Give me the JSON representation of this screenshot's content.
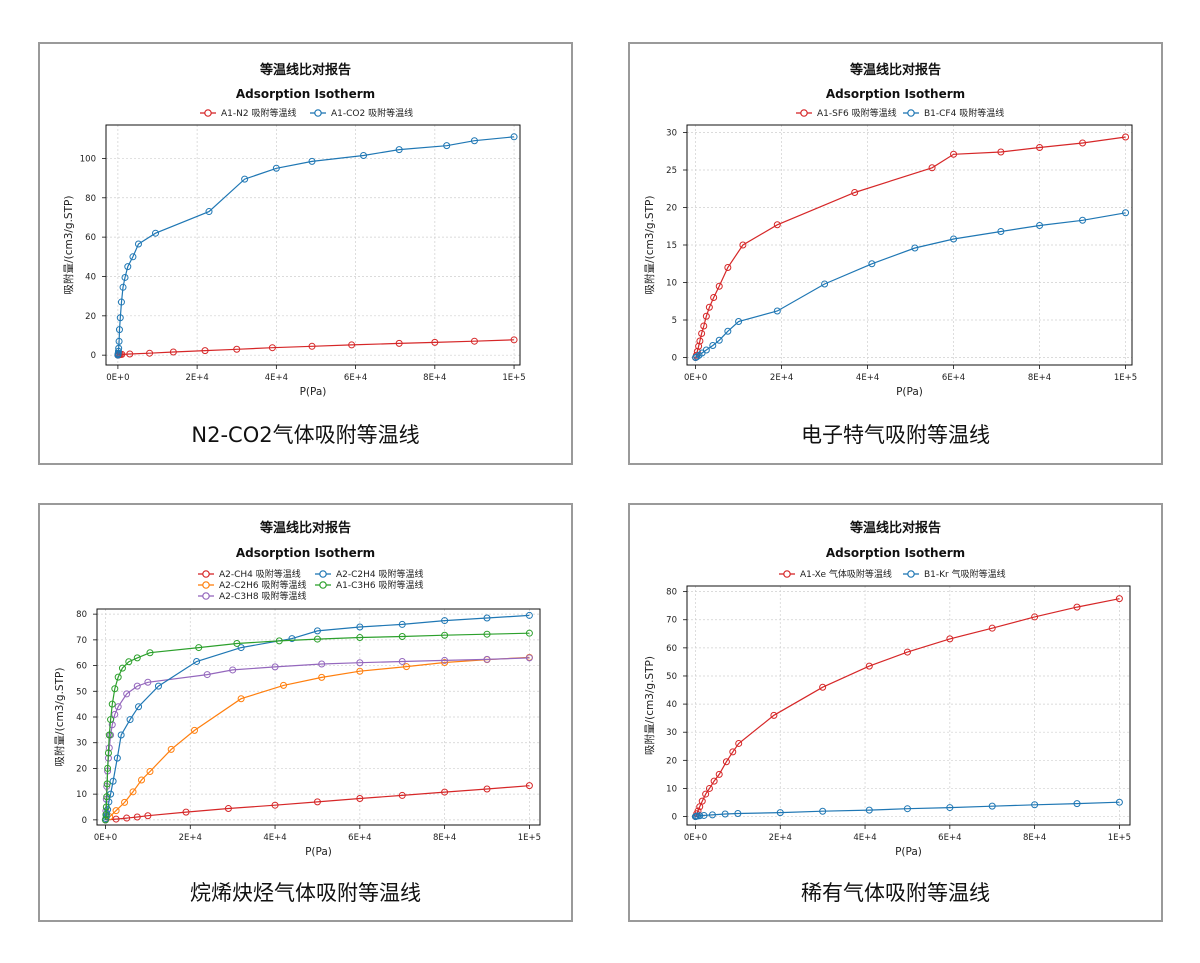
{
  "chart_data": [
    {
      "type": "line",
      "title": "等温线比对报告",
      "subtitle": "Adsorption Isotherm",
      "caption": "N2-CO2气体吸附等温线",
      "xlabel": "P(Pa)",
      "ylabel": "吸附量/(cm3/g.STP)",
      "xlim": [
        -3000,
        101500
      ],
      "ylim": [
        -5,
        117
      ],
      "xticks": [
        0,
        20000,
        40000,
        60000,
        80000,
        100000
      ],
      "xtick_labels": [
        "0E+0",
        "2E+4",
        "4E+4",
        "6E+4",
        "8E+4",
        "1E+5"
      ],
      "yticks": [
        0,
        20,
        40,
        60,
        80,
        100
      ],
      "ytick_labels": [
        "0",
        "20",
        "40",
        "60",
        "80",
        "100"
      ],
      "legend_layout": "row",
      "series": [
        {
          "name": "A1-N2 吸附等温线",
          "color": "#d62728",
          "x": [
            0,
            100,
            300,
            600,
            1000,
            3000,
            8000,
            14000,
            22000,
            30000,
            39000,
            49000,
            59000,
            71000,
            80000,
            90000,
            100000
          ],
          "y": [
            0,
            0.1,
            0.2,
            0.3,
            0.4,
            0.6,
            1.0,
            1.6,
            2.3,
            3.0,
            3.8,
            4.5,
            5.2,
            6.0,
            6.5,
            7.1,
            7.8
          ]
        },
        {
          "name": "A1-CO2 吸附等温线",
          "color": "#1f77b4",
          "x": [
            0,
            50,
            100,
            150,
            200,
            300,
            400,
            600,
            900,
            1300,
            1800,
            2500,
            3800,
            5200,
            9500,
            23000,
            32000,
            40000,
            49000,
            62000,
            71000,
            83000,
            90000,
            100000
          ],
          "y": [
            0,
            0.5,
            1.0,
            2.0,
            3.5,
            7,
            13,
            19,
            27,
            34.5,
            39.5,
            45,
            50,
            56.5,
            62,
            73,
            89.5,
            95,
            98.5,
            101.5,
            104.5,
            106.5,
            109,
            111
          ]
        }
      ]
    },
    {
      "type": "line",
      "title": "等温线比对报告",
      "subtitle": "Adsorption Isotherm",
      "caption": "电子特气吸附等温线",
      "xlabel": "P(Pa)",
      "ylabel": "吸附量/(cm3/g.STP)",
      "xlim": [
        -2000,
        101500
      ],
      "ylim": [
        -1,
        31
      ],
      "xticks": [
        0,
        20000,
        40000,
        60000,
        80000,
        100000
      ],
      "xtick_labels": [
        "0E+0",
        "2E+4",
        "4E+4",
        "6E+4",
        "8E+4",
        "1E+5"
      ],
      "yticks": [
        0,
        5,
        10,
        15,
        20,
        25,
        30
      ],
      "ytick_labels": [
        "0",
        "5",
        "10",
        "15",
        "20",
        "25",
        "30"
      ],
      "legend_layout": "row",
      "series": [
        {
          "name": "A1-SF6 吸附等温线",
          "color": "#d62728",
          "x": [
            0,
            200,
            400,
            700,
            1000,
            1400,
            1900,
            2500,
            3200,
            4200,
            5500,
            7500,
            11000,
            19000,
            37000,
            55000,
            60000,
            71000,
            80000,
            90000,
            100000
          ],
          "y": [
            0,
            0.3,
            0.8,
            1.5,
            2.2,
            3.2,
            4.2,
            5.5,
            6.7,
            8.0,
            9.5,
            12.0,
            15.0,
            17.7,
            22.0,
            25.3,
            27.1,
            27.4,
            28.0,
            28.6,
            29.4
          ]
        },
        {
          "name": "B1-CF4 吸附等温线",
          "color": "#1f77b4",
          "x": [
            0,
            300,
            800,
            1500,
            2500,
            4000,
            5500,
            7500,
            10000,
            19000,
            30000,
            41000,
            51000,
            60000,
            71000,
            80000,
            90000,
            100000
          ],
          "y": [
            0,
            0.1,
            0.3,
            0.6,
            1.0,
            1.6,
            2.3,
            3.5,
            4.8,
            6.2,
            9.8,
            12.5,
            14.6,
            15.8,
            16.8,
            17.6,
            18.3,
            19.3
          ]
        }
      ]
    },
    {
      "type": "line",
      "title": "等温线比对报告",
      "subtitle": "Adsorption Isotherm",
      "caption": "烷烯炔烃气体吸附等温线",
      "xlabel": "P(Pa)",
      "ylabel": "吸附量/(cm3/g.STP)",
      "xlim": [
        -2000,
        102500
      ],
      "ylim": [
        -2,
        82
      ],
      "xticks": [
        0,
        20000,
        40000,
        60000,
        80000,
        100000
      ],
      "xtick_labels": [
        "0E+0",
        "2E+4",
        "4E+4",
        "6E+4",
        "8E+4",
        "1E+5"
      ],
      "yticks": [
        0,
        10,
        20,
        30,
        40,
        50,
        60,
        70,
        80
      ],
      "ytick_labels": [
        "0",
        "10",
        "20",
        "30",
        "40",
        "50",
        "60",
        "70",
        "80"
      ],
      "legend_layout": "grid2",
      "series": [
        {
          "name": "A2-CH4 吸附等温线",
          "color": "#d62728",
          "x": [
            0,
            2500,
            5000,
            7500,
            10000,
            19000,
            29000,
            40000,
            50000,
            60000,
            70000,
            80000,
            90000,
            100000
          ],
          "y": [
            0,
            0.3,
            0.7,
            1.1,
            1.6,
            3.0,
            4.4,
            5.7,
            7.0,
            8.3,
            9.5,
            10.8,
            12.0,
            13.3
          ]
        },
        {
          "name": "A2-C2H6 吸附等温线",
          "color": "#ff7f0e",
          "x": [
            0,
            1000,
            2500,
            4500,
            6500,
            8500,
            10500,
            15500,
            21000,
            32000,
            42000,
            51000,
            60000,
            71000,
            80000,
            90000,
            100000
          ],
          "y": [
            0,
            1.2,
            3.6,
            6.8,
            10.9,
            15.5,
            18.8,
            27.4,
            34.8,
            47.1,
            52.3,
            55.4,
            57.8,
            59.6,
            61.2,
            62.3,
            63.2
          ]
        },
        {
          "name": "A2-C3H8 吸附等温线",
          "color": "#9467bd",
          "x": [
            0,
            100,
            200,
            300,
            500,
            700,
            900,
            1200,
            1600,
            2200,
            3000,
            5000,
            7500,
            10000,
            24000,
            30000,
            40000,
            51000,
            60000,
            70000,
            80000,
            90000,
            100000
          ],
          "y": [
            0,
            3.5,
            8,
            13,
            19,
            24,
            28,
            33,
            37,
            41,
            44,
            49,
            52,
            53.5,
            56.5,
            58.3,
            59.5,
            60.6,
            61.1,
            61.6,
            62,
            62.4,
            63.0
          ]
        },
        {
          "name": "A2-C2H4 吸附等温线",
          "color": "#1f77b4",
          "x": [
            0,
            100,
            200,
            300,
            500,
            800,
            1200,
            1800,
            2800,
            3700,
            5800,
            7800,
            12500,
            21500,
            32000,
            44000,
            50000,
            60000,
            70000,
            80000,
            90000,
            100000
          ],
          "y": [
            0,
            0.5,
            1.2,
            2.4,
            4,
            7,
            10,
            15,
            24,
            33,
            39,
            44,
            52,
            61.6,
            67,
            70.5,
            73.5,
            75,
            76,
            77.5,
            78.5,
            79.5
          ]
        },
        {
          "name": "A1-C3H6 吸附等温线",
          "color": "#2ca02c",
          "x": [
            0,
            100,
            200,
            300,
            400,
            500,
            700,
            900,
            1200,
            1600,
            2200,
            3000,
            4000,
            5500,
            7500,
            10500,
            22000,
            31000,
            41000,
            50000,
            60000,
            70000,
            80000,
            90000,
            100000
          ],
          "y": [
            0,
            2,
            5,
            9,
            14,
            20,
            26,
            33,
            39,
            45,
            51,
            55.5,
            59,
            61.5,
            63,
            65,
            67,
            68.6,
            69.6,
            70.3,
            70.9,
            71.3,
            71.8,
            72.2,
            72.6
          ]
        }
      ]
    },
    {
      "type": "line",
      "title": "等温线比对报告",
      "subtitle": "Adsorption Isotherm",
      "caption": "稀有气体吸附等温线",
      "xlabel": "P(Pa)",
      "ylabel": "吸附量/(cm3/g.STP)",
      "xlim": [
        -2000,
        102500
      ],
      "ylim": [
        -3,
        82
      ],
      "xticks": [
        0,
        20000,
        40000,
        60000,
        80000,
        100000
      ],
      "xtick_labels": [
        "0E+0",
        "2E+4",
        "4E+4",
        "6E+4",
        "8E+4",
        "1E+5"
      ],
      "yticks": [
        0,
        10,
        20,
        30,
        40,
        50,
        60,
        70,
        80
      ],
      "ytick_labels": [
        "0",
        "10",
        "20",
        "30",
        "40",
        "50",
        "60",
        "70",
        "80"
      ],
      "legend_layout": "row",
      "series": [
        {
          "name": "A1-Xe 气体吸附等温线",
          "color": "#d62728",
          "x": [
            0,
            300,
            600,
            1000,
            1600,
            2400,
            3300,
            4400,
            5600,
            7300,
            8800,
            10200,
            18500,
            30000,
            41000,
            50000,
            60000,
            70000,
            80000,
            90000,
            100000
          ],
          "y": [
            0,
            1,
            2,
            3.5,
            5.5,
            8,
            10,
            12.6,
            15,
            19.5,
            23,
            26,
            36,
            46,
            53.5,
            58.5,
            63.2,
            67,
            71,
            74.5,
            77.5
          ]
        },
        {
          "name": "B1-Kr 气吸附等温线",
          "color": "#1f77b4",
          "x": [
            0,
            200,
            500,
            1000,
            2000,
            4000,
            7000,
            10000,
            20000,
            30000,
            41000,
            50000,
            60000,
            70000,
            80000,
            90000,
            100000
          ],
          "y": [
            0,
            0.1,
            0.2,
            0.3,
            0.4,
            0.6,
            0.9,
            1.1,
            1.4,
            1.9,
            2.3,
            2.8,
            3.2,
            3.7,
            4.2,
            4.6,
            5.1
          ]
        }
      ]
    }
  ]
}
